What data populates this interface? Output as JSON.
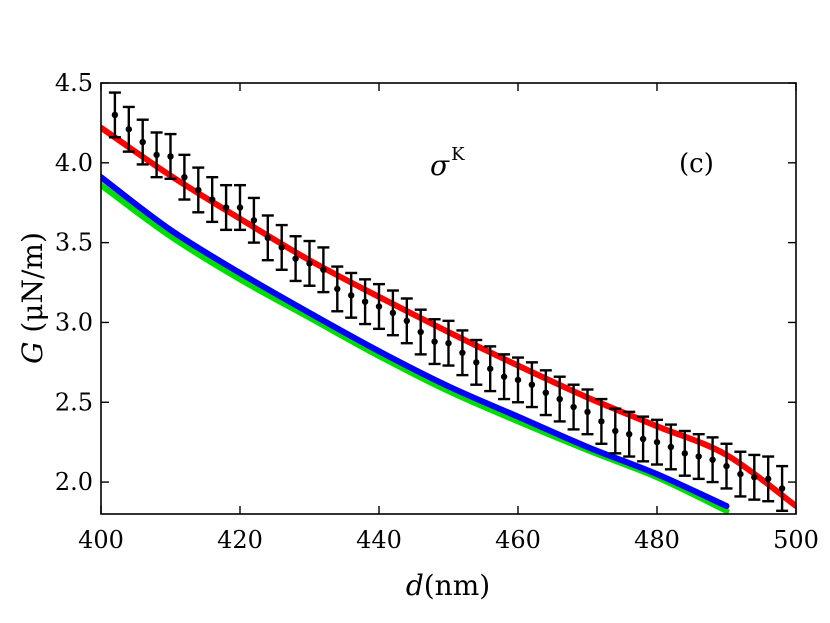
{
  "chart_data": {
    "type": "line",
    "panel_label": "(c)",
    "annotation": {
      "symbol": "σ",
      "superscript": "K"
    },
    "xlabel": {
      "italic": "d",
      "rest": "(nm)"
    },
    "ylabel": {
      "italic": "G",
      "rest": " (μN/m)"
    },
    "xlim": [
      400,
      500
    ],
    "ylim": [
      1.8,
      4.5
    ],
    "xticks": [
      400,
      420,
      440,
      460,
      480,
      500
    ],
    "xtick_labels": [
      "400",
      "420",
      "440",
      "460",
      "480",
      "500"
    ],
    "yticks": [
      2.0,
      2.5,
      3.0,
      3.5,
      4.0,
      4.5
    ],
    "ytick_labels": [
      "2.0",
      "2.5",
      "3.0",
      "3.5",
      "4.0",
      "4.5"
    ],
    "grid": false,
    "series": [
      {
        "color": "#ff0000",
        "x": [
          400,
          410,
          420,
          430,
          440,
          450,
          460,
          470,
          480,
          490,
          500
        ],
        "y": [
          4.22,
          3.92,
          3.65,
          3.39,
          3.16,
          2.94,
          2.73,
          2.53,
          2.35,
          2.17,
          1.85
        ]
      },
      {
        "color": "#00dd00",
        "x": [
          400,
          410,
          420,
          430,
          440,
          450,
          460,
          470,
          480,
          490
        ],
        "y": [
          3.86,
          3.54,
          3.27,
          3.03,
          2.79,
          2.57,
          2.38,
          2.2,
          2.03,
          1.82
        ]
      },
      {
        "color": "#0000ff",
        "x": [
          400,
          410,
          420,
          430,
          440,
          450,
          460,
          470,
          480,
          490
        ],
        "y": [
          3.91,
          3.58,
          3.31,
          3.06,
          2.82,
          2.6,
          2.41,
          2.22,
          2.05,
          1.85
        ]
      }
    ],
    "data_points": {
      "color": "#000000",
      "x": [
        402,
        404,
        406,
        408,
        410,
        412,
        414,
        416,
        418,
        420,
        422,
        424,
        426,
        428,
        430,
        432,
        434,
        436,
        438,
        440,
        442,
        444,
        446,
        448,
        450,
        452,
        454,
        456,
        458,
        460,
        462,
        464,
        466,
        468,
        470,
        472,
        474,
        476,
        478,
        480,
        482,
        484,
        486,
        488,
        490,
        492,
        494,
        496,
        498
      ],
      "y": [
        4.3,
        4.21,
        4.13,
        4.05,
        4.04,
        3.91,
        3.83,
        3.77,
        3.72,
        3.72,
        3.64,
        3.53,
        3.47,
        3.4,
        3.37,
        3.33,
        3.21,
        3.17,
        3.13,
        3.1,
        3.06,
        3.01,
        2.94,
        2.88,
        2.87,
        2.81,
        2.75,
        2.71,
        2.66,
        2.64,
        2.61,
        2.56,
        2.52,
        2.47,
        2.44,
        2.38,
        2.32,
        2.3,
        2.27,
        2.25,
        2.22,
        2.18,
        2.16,
        2.14,
        2.1,
        2.05,
        2.03,
        2.02,
        1.96
      ],
      "err": [
        0.14,
        0.14,
        0.14,
        0.14,
        0.14,
        0.14,
        0.14,
        0.14,
        0.14,
        0.14,
        0.14,
        0.14,
        0.14,
        0.14,
        0.14,
        0.14,
        0.14,
        0.14,
        0.14,
        0.14,
        0.14,
        0.14,
        0.14,
        0.14,
        0.14,
        0.14,
        0.14,
        0.14,
        0.14,
        0.14,
        0.14,
        0.14,
        0.14,
        0.14,
        0.14,
        0.14,
        0.14,
        0.14,
        0.14,
        0.14,
        0.14,
        0.14,
        0.14,
        0.14,
        0.14,
        0.14,
        0.14,
        0.14,
        0.14
      ]
    }
  }
}
